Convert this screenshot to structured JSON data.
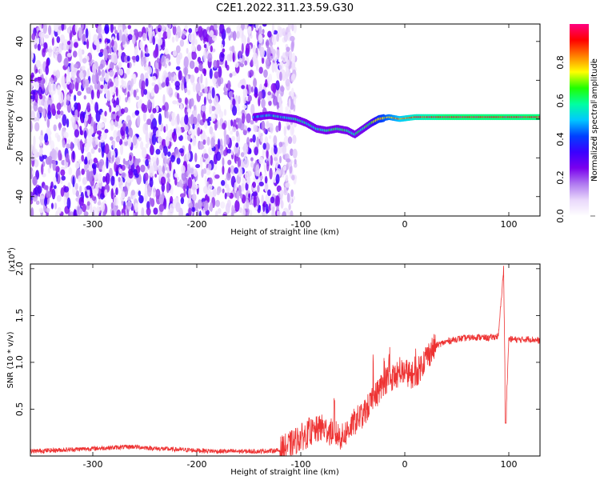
{
  "title": "C2E1.2022.311.23.59.G30",
  "chart_data": [
    {
      "type": "heatmap",
      "xlabel": "Height of straight line (km)",
      "ylabel": "Frequency (Hz)",
      "xlim": [
        -360,
        130
      ],
      "ylim": [
        -50,
        49
      ],
      "xticks": [
        -300,
        -200,
        -100,
        0,
        100
      ],
      "yticks": [
        -40,
        -20,
        0,
        20,
        40
      ],
      "colorbar": {
        "label": "Normalized spectral amplitude",
        "range": [
          0,
          1
        ],
        "ticks": [
          "0.0",
          "0.2",
          "0.4",
          "0.6",
          "0.8"
        ],
        "colors": [
          "#ffffff",
          "#e9d8fb",
          "#b07af0",
          "#7a00ee",
          "#3a00ff",
          "#0040ff",
          "#00c8ff",
          "#00ffa0",
          "#20ff00",
          "#ffff00",
          "#ff8000",
          "#ff0000",
          "#ff0080"
        ]
      },
      "noise_region_x": [
        -360,
        -120
      ],
      "signal_track": [
        {
          "x": -145,
          "f": 1,
          "amp": 0.45
        },
        {
          "x": -130,
          "f": 2,
          "amp": 0.5
        },
        {
          "x": -118,
          "f": 1,
          "amp": 0.5
        },
        {
          "x": -105,
          "f": 0,
          "amp": 0.55
        },
        {
          "x": -95,
          "f": -2,
          "amp": 0.55
        },
        {
          "x": -85,
          "f": -5,
          "amp": 0.55
        },
        {
          "x": -75,
          "f": -6,
          "amp": 0.6
        },
        {
          "x": -65,
          "f": -5,
          "amp": 0.6
        },
        {
          "x": -55,
          "f": -6,
          "amp": 0.6
        },
        {
          "x": -48,
          "f": -8,
          "amp": 0.55
        },
        {
          "x": -40,
          "f": -5,
          "amp": 0.6
        },
        {
          "x": -32,
          "f": -2,
          "amp": 0.65
        },
        {
          "x": -25,
          "f": 0,
          "amp": 0.75
        },
        {
          "x": -15,
          "f": 1,
          "amp": 0.8
        },
        {
          "x": -5,
          "f": 0,
          "amp": 0.85
        },
        {
          "x": 10,
          "f": 1,
          "amp": 0.9
        },
        {
          "x": 40,
          "f": 1,
          "amp": 0.95
        },
        {
          "x": 80,
          "f": 1,
          "amp": 0.95
        },
        {
          "x": 130,
          "f": 1,
          "amp": 0.95
        }
      ]
    },
    {
      "type": "line",
      "xlabel": "Height of straight line (km)",
      "ylabel": "SNR (10 * v/v)",
      "scale_label": "(x10",
      "scale_exponent": "4",
      "scale_close": ")",
      "xlim": [
        -360,
        130
      ],
      "ylim": [
        0,
        20500
      ],
      "xticks": [
        -300,
        -200,
        -100,
        0,
        100
      ],
      "yticks": [
        5000,
        10000,
        15000,
        20000
      ],
      "ytick_labels": [
        "0.5",
        "1.0",
        "1.5",
        "2.0"
      ],
      "color": "#ee3333",
      "series": [
        {
          "x": [
            -360,
            -340,
            -320,
            -300,
            -280,
            -260,
            -240,
            -220,
            -200,
            -180,
            -160,
            -140,
            -120,
            -110,
            -100,
            -90,
            -80,
            -70,
            -60,
            -50,
            -40,
            -30,
            -20,
            -10,
            0,
            10,
            20,
            30,
            40,
            50,
            60,
            70,
            80,
            90,
            95,
            97,
            100,
            110,
            120,
            130
          ],
          "y": [
            500,
            600,
            700,
            800,
            900,
            1000,
            800,
            700,
            600,
            500,
            500,
            500,
            600,
            1200,
            2000,
            2500,
            3000,
            2500,
            2000,
            3500,
            4500,
            6000,
            8000,
            8500,
            9000,
            8500,
            10500,
            11800,
            12200,
            12500,
            12600,
            12700,
            12600,
            12800,
            20000,
            3500,
            12500,
            12400,
            12500,
            12300
          ]
        }
      ],
      "spikes": [
        {
          "x": -92,
          "ymax": 4200
        },
        {
          "x": -80,
          "ymax": 4200
        },
        {
          "x": -68,
          "ymax": 6500
        },
        {
          "x": -50,
          "ymax": 4500
        },
        {
          "x": -40,
          "ymax": 5000
        },
        {
          "x": -30,
          "ymax": 11500
        },
        {
          "x": -20,
          "ymax": 12000
        },
        {
          "x": -15,
          "ymax": 12300
        },
        {
          "x": -5,
          "ymax": 11000
        },
        {
          "x": 5,
          "ymax": 10500
        },
        {
          "x": 10,
          "ymax": 12000
        }
      ]
    }
  ]
}
